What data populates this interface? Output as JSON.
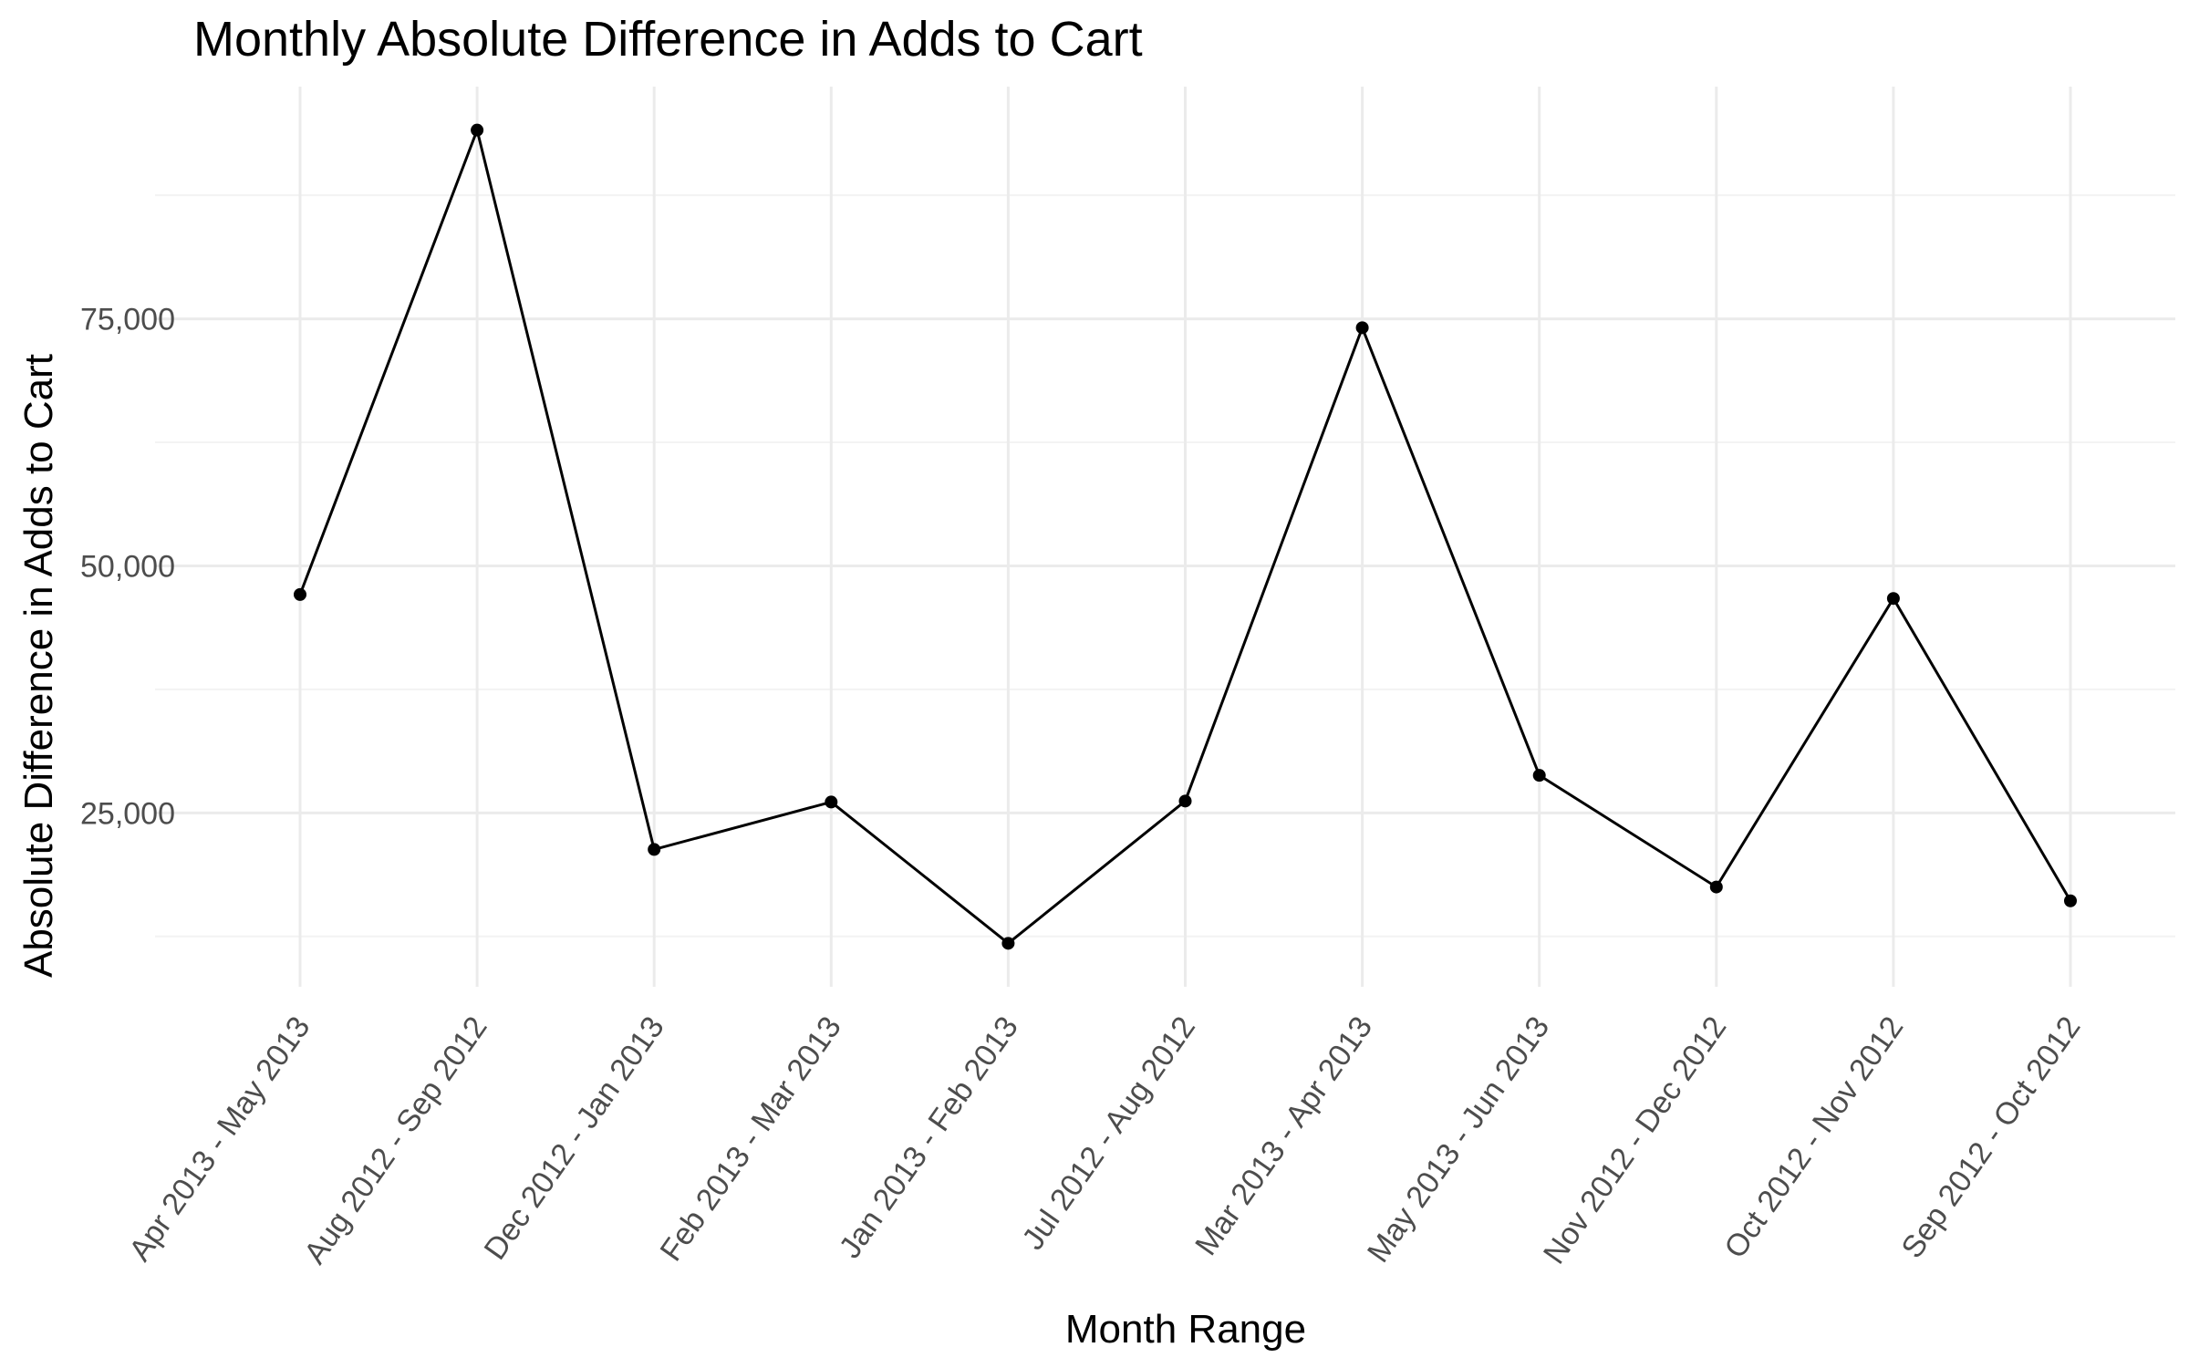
{
  "chart_data": {
    "type": "line",
    "title": "Monthly Absolute Difference in Adds to Cart",
    "xlabel": "Month Range",
    "ylabel": "Absolute Difference in Adds to Cart",
    "categories": [
      "Apr 2013 - May 2013",
      "Aug 2012 - Sep 2012",
      "Dec 2012 - Jan 2013",
      "Feb 2013 - Mar 2013",
      "Jan 2013 - Feb 2013",
      "Jul 2012 - Aug 2012",
      "Mar 2013 - Apr 2013",
      "May 2013 - Jun 2013",
      "Nov 2012 - Dec 2012",
      "Oct 2012 - Nov 2012",
      "Sep 2012 - Oct 2012"
    ],
    "series": [
      {
        "values": [
          47100,
          94100,
          21300,
          26100,
          11800,
          26200,
          74100,
          28800,
          17500,
          46700,
          16100
        ]
      }
    ],
    "ylim": [
      7400,
      98500
    ],
    "yticks": [
      25000,
      50000,
      75000
    ],
    "ytick_labels": [
      "25,000",
      "50,000",
      "75,000"
    ],
    "y_minor_ticks": [
      12500,
      37500,
      62500,
      87500
    ],
    "grid": true,
    "legend": "none",
    "colors": {
      "line": "#000000",
      "points": "#000000",
      "grid": "#ebebeb"
    }
  }
}
